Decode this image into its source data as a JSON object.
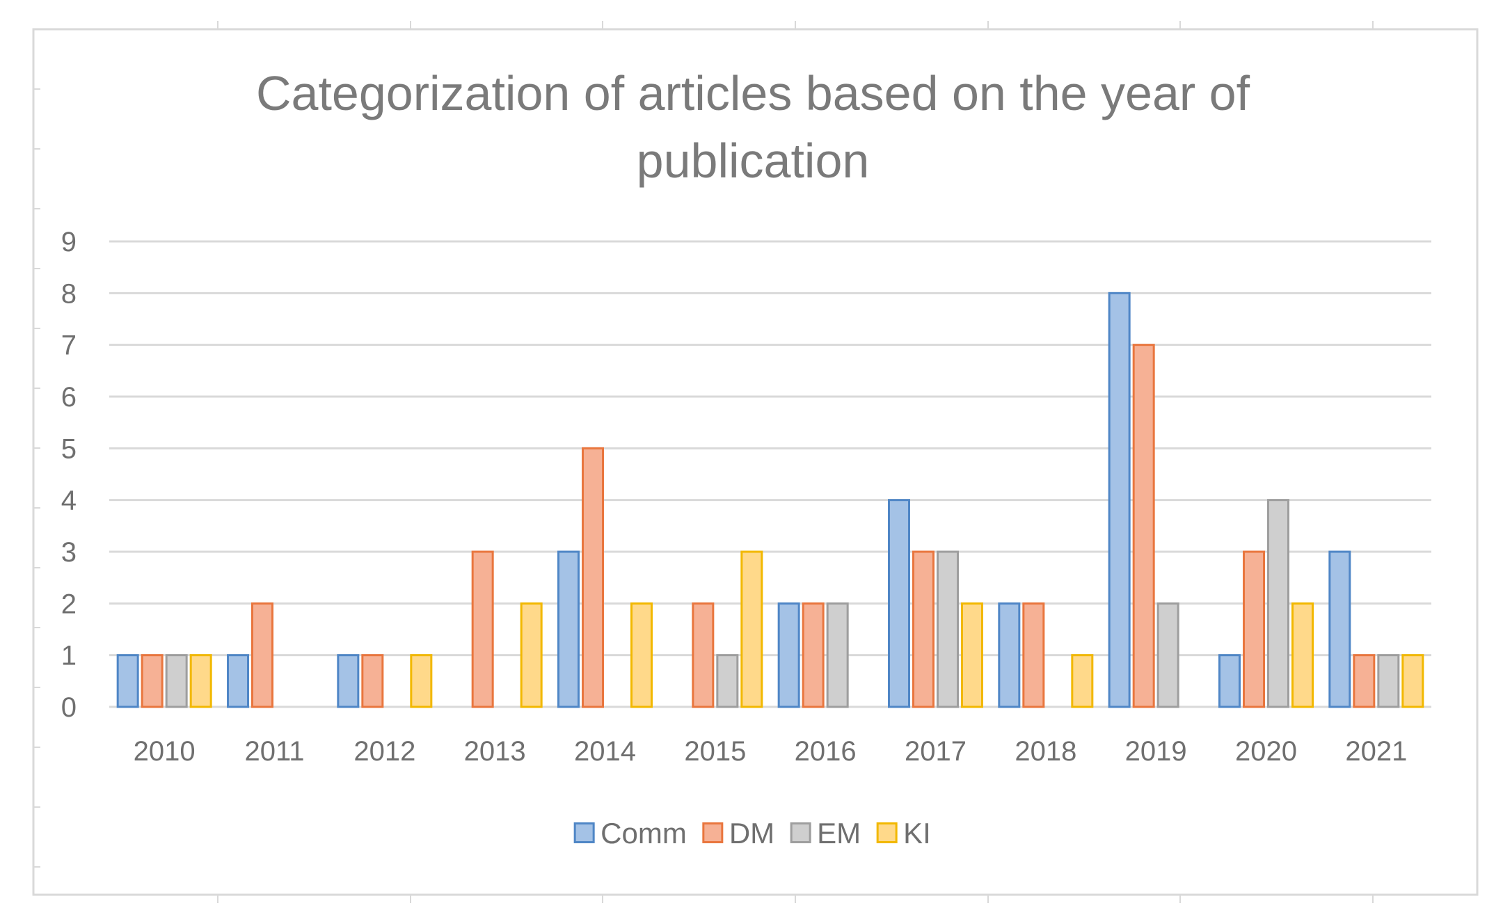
{
  "chart_data": {
    "type": "bar",
    "title": "Categorization of articles based on the year of publication",
    "title_lines": [
      "Categorization of articles based on the year of",
      "publication"
    ],
    "categories": [
      "2010",
      "2011",
      "2012",
      "2013",
      "2014",
      "2015",
      "2016",
      "2017",
      "2018",
      "2019",
      "2020",
      "2021"
    ],
    "series": [
      {
        "name": "Comm",
        "values": [
          1,
          1,
          1,
          0,
          3,
          0,
          2,
          4,
          2,
          8,
          1,
          3
        ],
        "fill": "#a4c2e6",
        "stroke": "#4f86c6"
      },
      {
        "name": "DM",
        "values": [
          1,
          2,
          1,
          3,
          5,
          2,
          2,
          3,
          2,
          7,
          3,
          1
        ],
        "fill": "#f6b195",
        "stroke": "#e9763e"
      },
      {
        "name": "EM",
        "values": [
          1,
          0,
          0,
          0,
          0,
          1,
          2,
          3,
          0,
          2,
          4,
          1
        ],
        "fill": "#cfcfcf",
        "stroke": "#9e9e9e"
      },
      {
        "name": "KI",
        "values": [
          1,
          0,
          1,
          2,
          2,
          3,
          0,
          2,
          1,
          0,
          2,
          1
        ],
        "fill": "#ffd98a",
        "stroke": "#f2b800"
      }
    ],
    "ylim": [
      0,
      9
    ],
    "yticks": [
      "0",
      "1",
      "2",
      "3",
      "4",
      "5",
      "6",
      "7",
      "8",
      "9"
    ],
    "grid": true,
    "legend": "bottom",
    "xlabel": "",
    "ylabel": ""
  }
}
